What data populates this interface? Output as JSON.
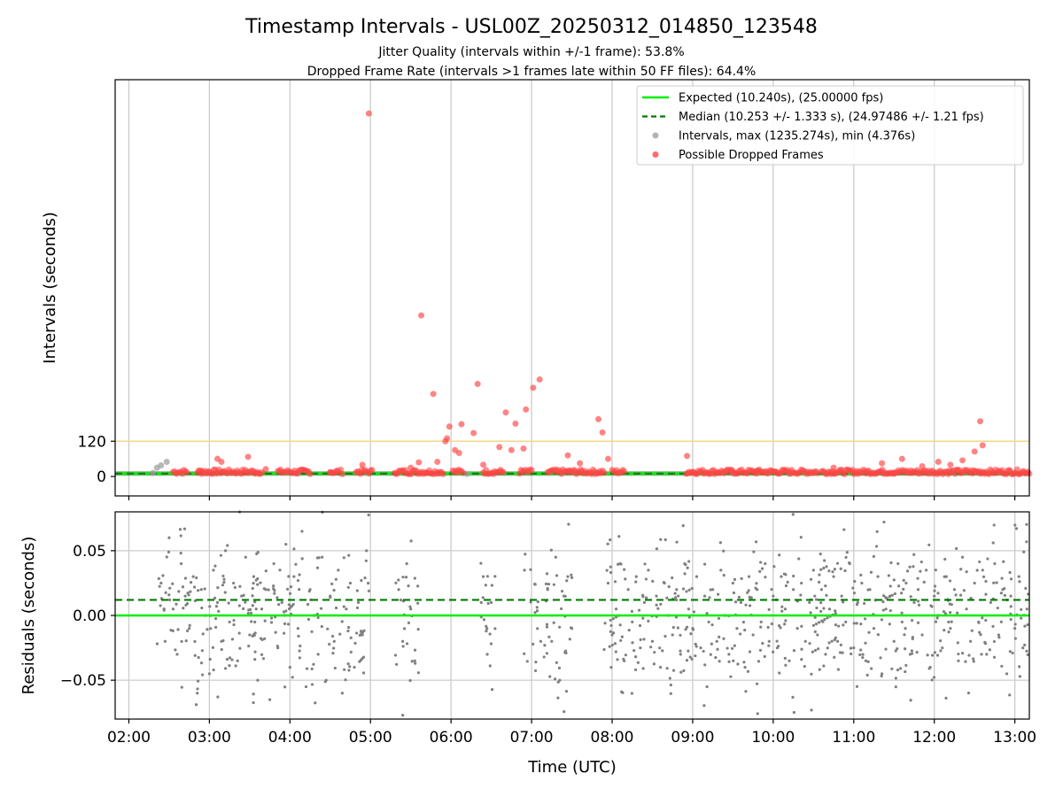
{
  "chart_data": [
    {
      "type": "scatter",
      "panel": "intervals",
      "title": "Timestamp Intervals - USL00Z_20250312_014850_123548",
      "subtitle_1": "Jitter Quality (intervals within +/-1 frame): 53.8%",
      "subtitle_2": "Dropped Frame Rate (intervals >1 frames late within 50 FF files): 64.4%",
      "ylabel": "Intervals (seconds)",
      "x_unit": "hours UTC",
      "xlim": [
        1.83,
        13.18
      ],
      "ylim": [
        -66,
        1350
      ],
      "yticks": [
        {
          "value": 0,
          "label": "0"
        },
        {
          "value": 120,
          "label": "120"
        }
      ],
      "grid": "vertical",
      "threshold_line": {
        "value": 120,
        "color": "#f5d78a"
      },
      "legend_position": "top-right",
      "legend": [
        {
          "label": "Expected (10.240s), (25.00000 fps)",
          "style": "line",
          "color": "#00ee00"
        },
        {
          "label": "Median (10.253 +/- 1.333 s), (24.97486 +/- 1.21 fps)",
          "style": "dashed",
          "color": "#007a00"
        },
        {
          "label": "Intervals, max (1235.274s), min (4.376s)",
          "style": "marker",
          "color": "#a0a0a0"
        },
        {
          "label": "Possible Dropped Frames",
          "style": "marker",
          "color": "#ff4444"
        }
      ],
      "series": [
        {
          "name": "Expected (10.240s), (25.00000 fps)",
          "y": 10.24
        },
        {
          "name": "Median (10.253 +/- 1.333 s), (24.97486 +/- 1.21 fps)",
          "y": 10.253
        },
        {
          "name": "Intervals, max (1235.274s), min (4.376s)",
          "points": [
            [
              2.35,
              30
            ],
            [
              2.4,
              38
            ],
            [
              2.47,
              50
            ],
            [
              2.3,
              12
            ],
            [
              4.1,
              10
            ],
            [
              6.2,
              9
            ],
            [
              9.5,
              11
            ],
            [
              10.2,
              10
            ],
            [
              11.5,
              10
            ]
          ]
        },
        {
          "name": "Possible Dropped Frames",
          "points": [
            [
              4.98,
              1235
            ],
            [
              5.63,
              548
            ],
            [
              5.78,
              281
            ],
            [
              6.33,
              315
            ],
            [
              7.02,
              302
            ],
            [
              7.1,
              330
            ],
            [
              6.93,
              228
            ],
            [
              6.68,
              218
            ],
            [
              6.8,
              180
            ],
            [
              5.98,
              170
            ],
            [
              6.13,
              178
            ],
            [
              6.28,
              148
            ],
            [
              7.83,
              195
            ],
            [
              7.88,
              150
            ],
            [
              12.57,
              188
            ],
            [
              5.93,
              120
            ],
            [
              5.95,
              130
            ],
            [
              6.6,
              100
            ],
            [
              6.75,
              90
            ],
            [
              6.9,
              95
            ],
            [
              12.6,
              106
            ],
            [
              6.1,
              80
            ],
            [
              6.05,
              90
            ],
            [
              7.45,
              72
            ],
            [
              8.93,
              70
            ],
            [
              11.6,
              60
            ],
            [
              3.48,
              67
            ],
            [
              12.5,
              85
            ],
            [
              12.35,
              55
            ],
            [
              5.5,
              30
            ],
            [
              5.6,
              48
            ],
            [
              5.83,
              50
            ],
            [
              6.4,
              40
            ],
            [
              7.6,
              45
            ],
            [
              7.95,
              60
            ],
            [
              10.75,
              30
            ],
            [
              11.35,
              45
            ],
            [
              11.85,
              35
            ],
            [
              12.05,
              50
            ],
            [
              12.2,
              40
            ],
            [
              2.9,
              20
            ],
            [
              3.1,
              60
            ],
            [
              3.15,
              50
            ],
            [
              3.7,
              25
            ],
            [
              4.5,
              15
            ],
            [
              4.9,
              40
            ],
            [
              9.8,
              20
            ]
          ],
          "segments": [
            [
              2.55,
              2.72
            ],
            [
              2.85,
              3.65
            ],
            [
              3.85,
              4.25
            ],
            [
              4.5,
              4.65
            ],
            [
              4.82,
              5.02
            ],
            [
              5.3,
              5.9
            ],
            [
              6.02,
              6.15
            ],
            [
              6.4,
              6.65
            ],
            [
              6.85,
              7.0
            ],
            [
              7.2,
              7.9
            ],
            [
              8.0,
              8.15
            ],
            [
              8.92,
              10.55
            ],
            [
              10.6,
              13.18
            ]
          ]
        }
      ]
    },
    {
      "type": "scatter",
      "panel": "residuals",
      "xlabel": "Time (UTC)",
      "ylabel": "Residuals (seconds)",
      "xlim": [
        1.83,
        13.18
      ],
      "ylim": [
        -0.08,
        0.08
      ],
      "yticks": [
        {
          "value": 0.05,
          "label": "0.05"
        },
        {
          "value": 0.0,
          "label": "0.00"
        },
        {
          "value": -0.05,
          "label": "−0.05"
        }
      ],
      "xticks": [
        {
          "value": 2,
          "label": "02:00"
        },
        {
          "value": 3,
          "label": "03:00"
        },
        {
          "value": 4,
          "label": "04:00"
        },
        {
          "value": 5,
          "label": "05:00"
        },
        {
          "value": 6,
          "label": "06:00"
        },
        {
          "value": 7,
          "label": "07:00"
        },
        {
          "value": 8,
          "label": "08:00"
        },
        {
          "value": 9,
          "label": "09:00"
        },
        {
          "value": 10,
          "label": "10:00"
        },
        {
          "value": 11,
          "label": "11:00"
        },
        {
          "value": 12,
          "label": "12:00"
        },
        {
          "value": 13,
          "label": "13:00"
        }
      ],
      "grid": "both",
      "expected_line": {
        "value": 0.0,
        "color": "#00ee00"
      },
      "median_line": {
        "value": 0.012,
        "color": "#007a00"
      },
      "point_color": "#808080",
      "points": [
        [
          2.4,
          0.025
        ],
        [
          2.45,
          -0.02
        ],
        [
          2.5,
          0.06
        ],
        [
          2.55,
          0.005
        ],
        [
          2.6,
          -0.03
        ],
        [
          2.65,
          0.04
        ],
        [
          2.7,
          0.015
        ],
        [
          2.75,
          -0.01
        ],
        [
          2.8,
          0.03
        ],
        [
          2.85,
          -0.06
        ],
        [
          2.9,
          0.02
        ],
        [
          2.95,
          0.0
        ],
        [
          3.0,
          -0.045
        ],
        [
          3.05,
          0.035
        ],
        [
          3.1,
          0.01
        ],
        [
          3.15,
          -0.02
        ],
        [
          3.2,
          0.05
        ],
        [
          3.25,
          -0.005
        ],
        [
          3.3,
          0.025
        ],
        [
          3.35,
          -0.035
        ],
        [
          3.4,
          0.015
        ],
        [
          3.45,
          0.045
        ],
        [
          3.5,
          -0.015
        ],
        [
          3.55,
          0.03
        ],
        [
          3.6,
          -0.05
        ],
        [
          3.65,
          0.005
        ],
        [
          3.7,
          0.02
        ],
        [
          3.75,
          -0.065
        ],
        [
          3.8,
          0.04
        ],
        [
          3.85,
          -0.025
        ],
        [
          3.9,
          0.01
        ],
        [
          3.95,
          0.055
        ],
        [
          4.0,
          -0.04
        ],
        [
          4.05,
          0.03
        ],
        [
          4.1,
          -0.01
        ],
        [
          4.15,
          0.065
        ],
        [
          4.2,
          -0.055
        ],
        [
          4.25,
          0.02
        ],
        [
          4.3,
          0.0
        ],
        [
          4.35,
          -0.03
        ],
        [
          4.4,
          0.045
        ],
        [
          4.45,
          -0.05
        ],
        [
          4.5,
          0.015
        ],
        [
          4.55,
          -0.02
        ],
        [
          4.6,
          0.035
        ],
        [
          4.65,
          -0.06
        ],
        [
          4.7,
          0.005
        ],
        [
          4.75,
          0.025
        ],
        [
          4.8,
          -0.04
        ],
        [
          4.85,
          0.01
        ],
        [
          4.9,
          -0.015
        ],
        [
          4.95,
          0.05
        ],
        [
          5.35,
          0.02
        ],
        [
          5.4,
          -0.02
        ],
        [
          5.45,
          0.04
        ],
        [
          5.5,
          0.005
        ],
        [
          5.55,
          -0.035
        ],
        [
          6.4,
          0.03
        ],
        [
          6.45,
          -0.03
        ],
        [
          6.5,
          0.01
        ],
        [
          7.2,
          0.02
        ],
        [
          7.25,
          -0.02
        ],
        [
          7.3,
          0.045
        ],
        [
          7.35,
          -0.05
        ],
        [
          7.4,
          0.015
        ],
        [
          7.45,
          0.03
        ],
        [
          7.5,
          -0.01
        ],
        [
          7.95,
          0.025
        ],
        [
          8.0,
          -0.015
        ],
        [
          8.05,
          0.005
        ],
        [
          8.1,
          0.04
        ],
        [
          8.15,
          -0.035
        ],
        [
          8.2,
          0.02
        ],
        [
          8.25,
          -0.005
        ],
        [
          8.3,
          0.03
        ],
        [
          8.35,
          -0.025
        ],
        [
          8.4,
          0.01
        ],
        [
          8.45,
          0.035
        ],
        [
          8.5,
          -0.02
        ],
        [
          8.55,
          0.015
        ],
        [
          8.6,
          -0.04
        ],
        [
          8.65,
          0.025
        ],
        [
          8.7,
          0.0
        ],
        [
          8.75,
          -0.015
        ],
        [
          8.8,
          0.02
        ],
        [
          8.85,
          -0.03
        ],
        [
          8.9,
          0.04
        ],
        [
          8.95,
          0.005
        ],
        [
          9.0,
          -0.01
        ],
        [
          9.05,
          0.03
        ],
        [
          9.1,
          -0.025
        ],
        [
          9.15,
          0.015
        ],
        [
          9.2,
          -0.005
        ],
        [
          9.25,
          0.02
        ],
        [
          9.3,
          -0.02
        ],
        [
          9.35,
          0.035
        ],
        [
          9.4,
          0.0
        ],
        [
          9.45,
          -0.03
        ],
        [
          9.5,
          0.025
        ],
        [
          9.55,
          -0.01
        ],
        [
          9.6,
          0.01
        ],
        [
          9.65,
          -0.04
        ],
        [
          9.7,
          0.03
        ],
        [
          9.75,
          -0.015
        ],
        [
          9.8,
          0.02
        ],
        [
          9.85,
          -0.005
        ],
        [
          9.9,
          0.04
        ],
        [
          9.95,
          -0.02
        ],
        [
          10.0,
          0.015
        ],
        [
          10.05,
          -0.025
        ],
        [
          10.1,
          0.03
        ],
        [
          10.15,
          0.005
        ],
        [
          10.2,
          -0.035
        ],
        [
          10.25,
          0.02
        ],
        [
          10.3,
          -0.01
        ],
        [
          10.35,
          0.025
        ],
        [
          10.4,
          -0.02
        ],
        [
          10.45,
          0.01
        ],
        [
          10.5,
          0.035
        ],
        [
          10.55,
          -0.015
        ],
        [
          10.6,
          0.02
        ],
        [
          10.65,
          -0.03
        ],
        [
          10.7,
          0.005
        ],
        [
          10.75,
          0.03
        ],
        [
          10.8,
          -0.02
        ],
        [
          10.85,
          0.015
        ],
        [
          10.9,
          -0.005
        ],
        [
          10.95,
          0.04
        ],
        [
          11.0,
          -0.025
        ],
        [
          11.05,
          0.01
        ],
        [
          11.1,
          0.025
        ],
        [
          11.15,
          -0.035
        ],
        [
          11.2,
          0.02
        ],
        [
          11.25,
          -0.01
        ],
        [
          11.3,
          0.03
        ],
        [
          11.35,
          -0.045
        ],
        [
          11.4,
          0.005
        ],
        [
          11.45,
          0.015
        ],
        [
          11.5,
          -0.02
        ],
        [
          11.55,
          0.04
        ],
        [
          11.6,
          -0.005
        ],
        [
          11.65,
          0.025
        ],
        [
          11.7,
          -0.03
        ],
        [
          11.75,
          0.01
        ],
        [
          11.8,
          0.02
        ],
        [
          11.85,
          -0.015
        ],
        [
          11.9,
          0.035
        ],
        [
          11.95,
          -0.04
        ],
        [
          12.0,
          0.015
        ],
        [
          12.05,
          0.0
        ],
        [
          12.1,
          -0.025
        ],
        [
          12.15,
          0.03
        ],
        [
          12.2,
          -0.01
        ],
        [
          12.25,
          0.02
        ],
        [
          12.3,
          -0.035
        ],
        [
          12.35,
          0.045
        ],
        [
          12.4,
          0.005
        ],
        [
          12.45,
          -0.02
        ],
        [
          12.5,
          0.025
        ],
        [
          12.55,
          -0.005
        ],
        [
          12.6,
          0.035
        ],
        [
          12.65,
          -0.03
        ],
        [
          12.7,
          0.01
        ],
        [
          12.75,
          0.04
        ],
        [
          12.8,
          -0.015
        ],
        [
          12.85,
          0.02
        ],
        [
          12.9,
          -0.045
        ],
        [
          12.95,
          0.015
        ],
        [
          13.0,
          -0.01
        ],
        [
          13.05,
          0.03
        ],
        [
          13.1,
          -0.025
        ],
        [
          13.15,
          0.005
        ]
      ]
    }
  ]
}
